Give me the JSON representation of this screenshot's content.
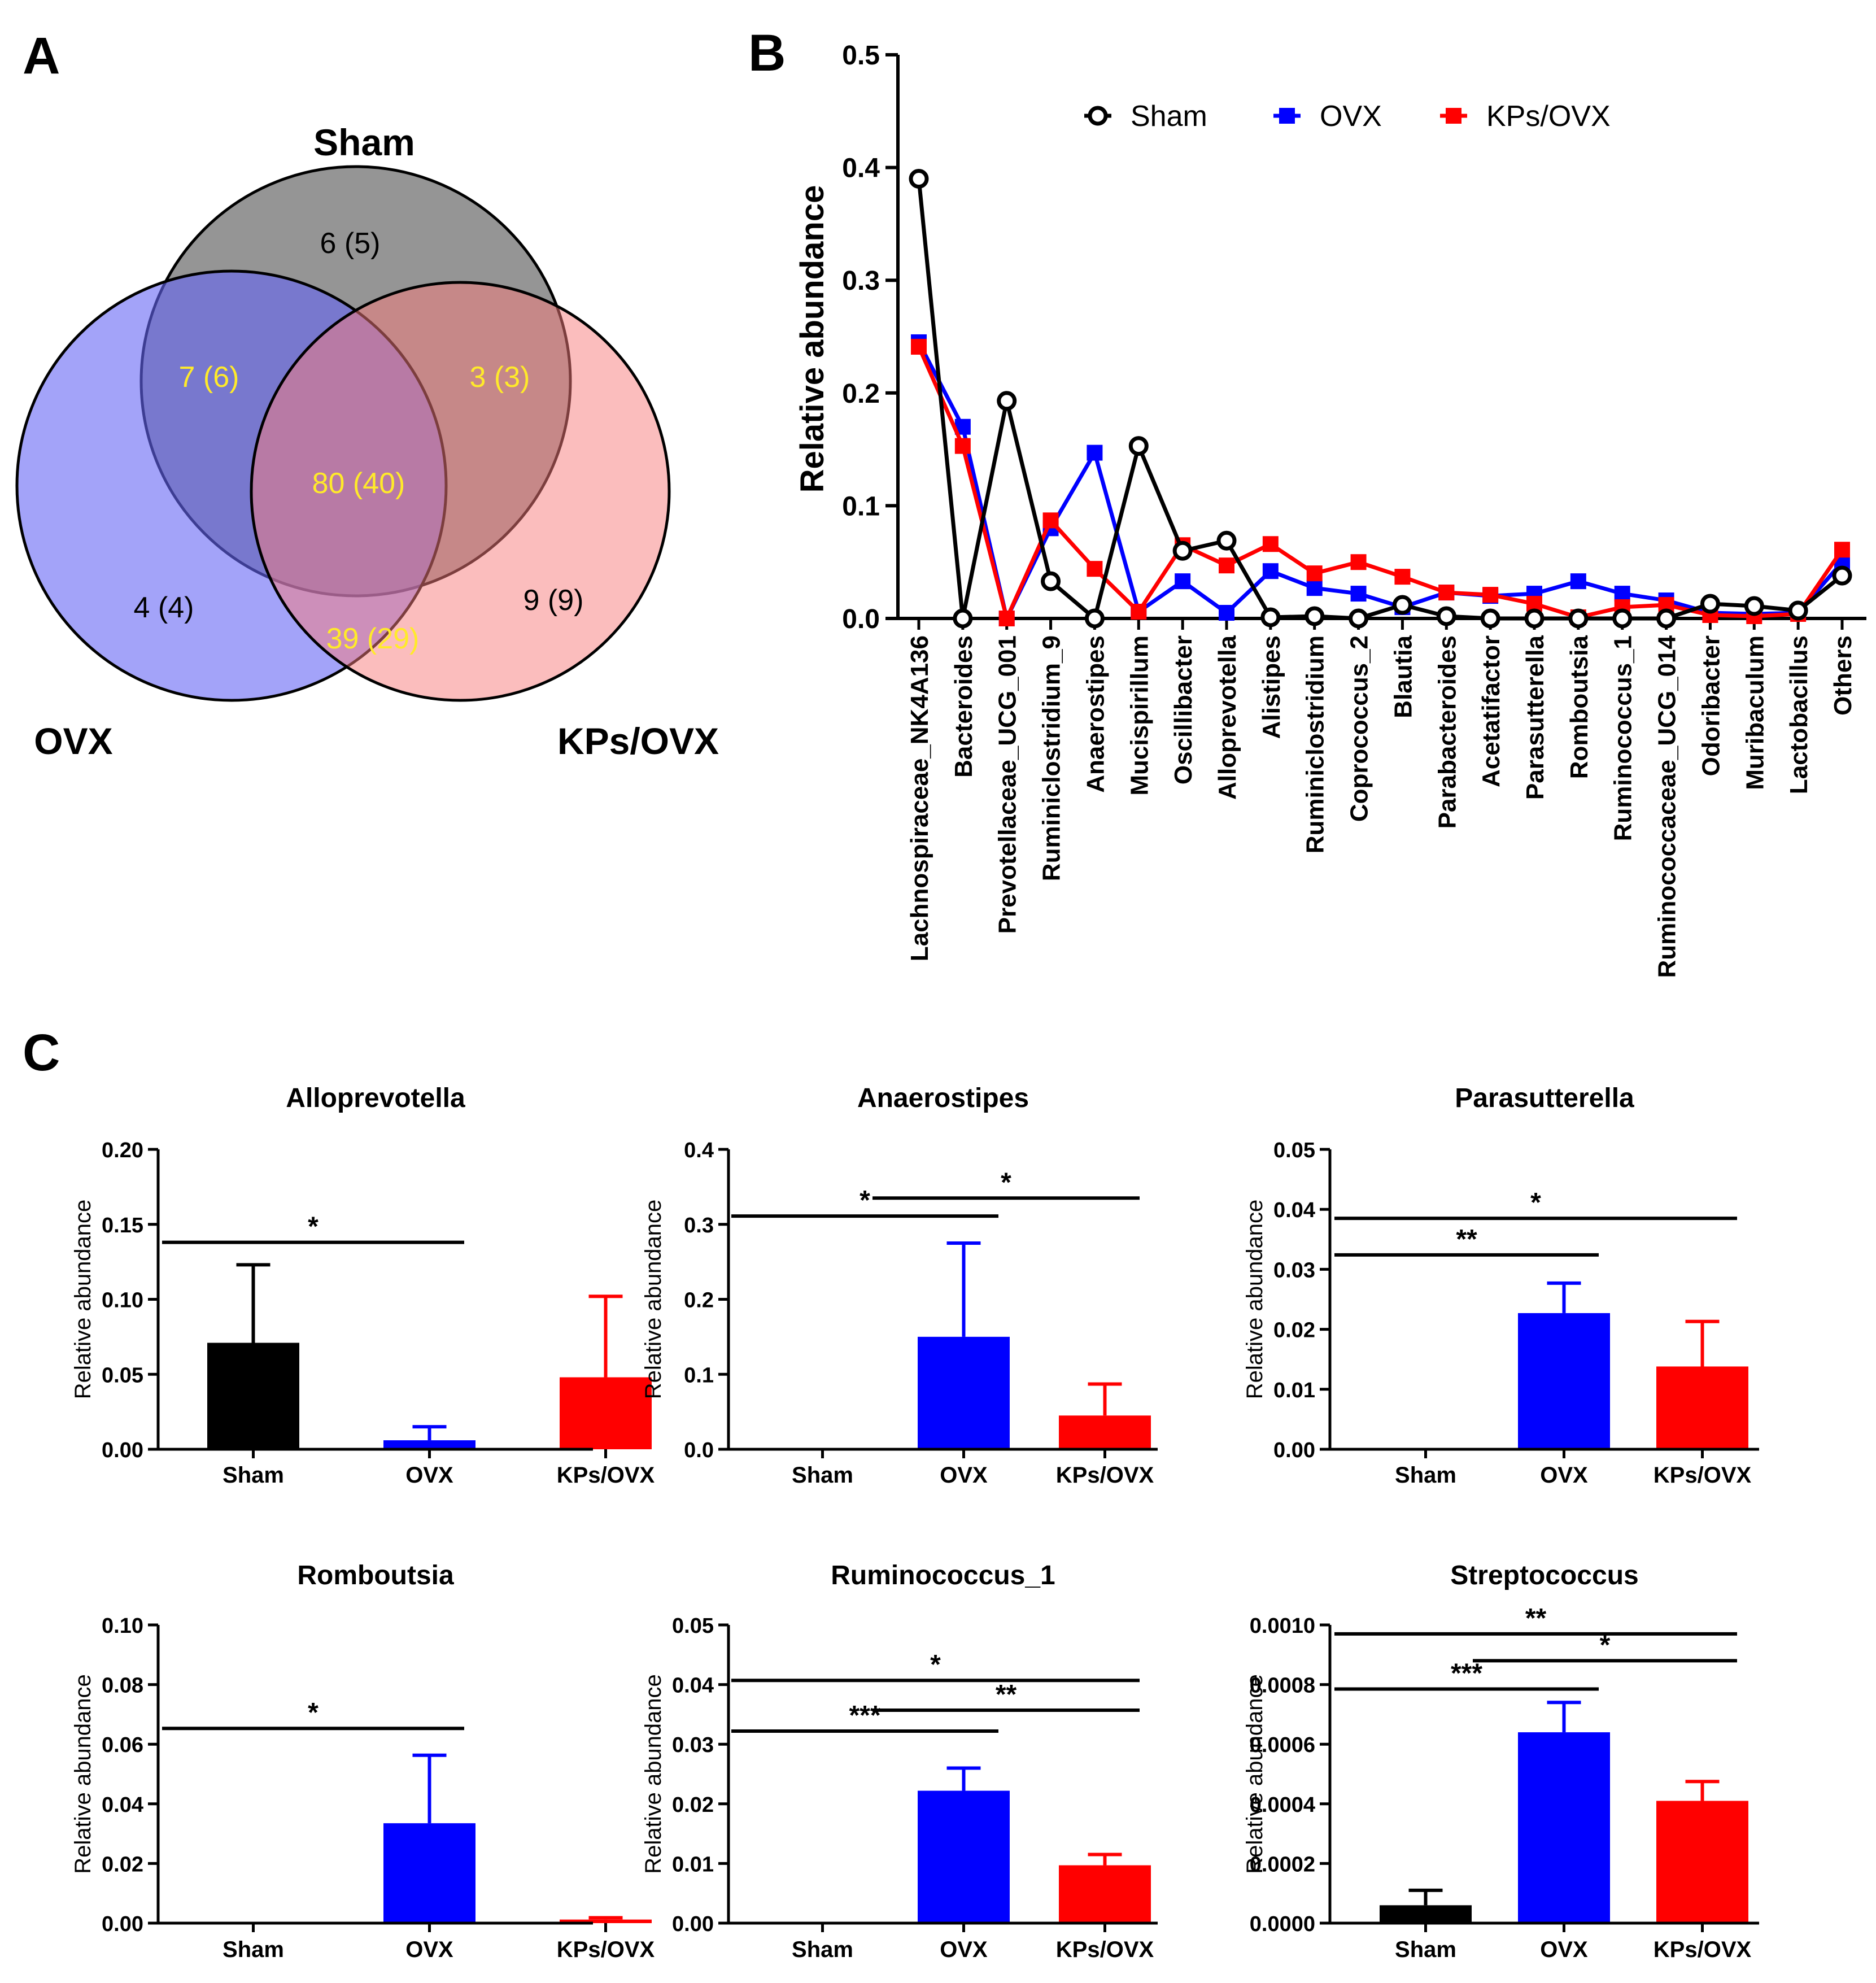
{
  "panel_labels": {
    "a": "A",
    "b": "B",
    "c": "C"
  },
  "venn": {
    "sets": [
      {
        "name": "Sham",
        "color": "#8a8a8a"
      },
      {
        "name": "OVX",
        "color": "#6565f5"
      },
      {
        "name": "KPs/OVX",
        "color": "#f77b7b"
      }
    ],
    "regions": {
      "sham_only": "6 (5)",
      "sham_ovx": "7 (6)",
      "sham_kps": "3 (3)",
      "all": "80 (40)",
      "ovx_only": "4 (4)",
      "kps_only": "9 (9)",
      "ovx_kps": "39 (29)"
    }
  },
  "chart_data": [
    {
      "type": "line",
      "panel": "B",
      "ylabel": "Relative abundance",
      "ylim": [
        0,
        0.5
      ],
      "yticks": [
        "0.0",
        "0.1",
        "0.2",
        "0.3",
        "0.4",
        "0.5"
      ],
      "categories": [
        "Lachnospiraceae_NK4A136",
        "Bacteroides",
        "Prevotellaceae_UCG_001",
        "Ruminiclostridium_9",
        "Anaerostipes",
        "Mucispirillum",
        "Oscillibacter",
        "Alloprevotella",
        "Alistipes",
        "Ruminiclostridium",
        "Coprococcus_2",
        "Blautia",
        "Parabacteroides",
        "Acetatifactor",
        "Parasutterella",
        "Romboutsia",
        "Ruminococcus_1",
        "Ruminococcaceae_UCG_014",
        "Odoribacter",
        "Muribaculum",
        "Lactobacillus",
        "Others"
      ],
      "series": [
        {
          "name": "Sham",
          "color": "#000000",
          "marker": "open-circle",
          "values": [
            0.39,
            0.0,
            0.193,
            0.033,
            0.0,
            0.153,
            0.06,
            0.069,
            0.001,
            0.002,
            0.0,
            0.012,
            0.002,
            0.0,
            0.0,
            0.0,
            0.0,
            0.0,
            0.013,
            0.011,
            0.007,
            0.038
          ]
        },
        {
          "name": "OVX",
          "color": "#0000ff",
          "marker": "square",
          "values": [
            0.245,
            0.17,
            0.0,
            0.08,
            0.147,
            0.006,
            0.033,
            0.005,
            0.042,
            0.027,
            0.022,
            0.01,
            0.023,
            0.02,
            0.022,
            0.033,
            0.022,
            0.016,
            0.005,
            0.004,
            0.005,
            0.05
          ]
        },
        {
          "name": "KPs/OVX",
          "color": "#ff0000",
          "marker": "square",
          "values": [
            0.241,
            0.153,
            0.0,
            0.087,
            0.044,
            0.006,
            0.065,
            0.047,
            0.066,
            0.04,
            0.05,
            0.037,
            0.023,
            0.021,
            0.013,
            0.001,
            0.01,
            0.012,
            0.003,
            0.002,
            0.004,
            0.061
          ]
        }
      ]
    },
    {
      "type": "bar",
      "panel": "C",
      "title": "Alloprevotella",
      "ylabel": "Relative abundance",
      "categories": [
        "Sham",
        "OVX",
        "KPs/OVX"
      ],
      "colors": [
        "#000000",
        "#0000ff",
        "#ff0000"
      ],
      "values": [
        0.071,
        0.006,
        0.048
      ],
      "errors": [
        0.052,
        0.009,
        0.054
      ],
      "ylim": [
        0,
        0.2
      ],
      "yticks": [
        "0.00",
        "0.05",
        "0.10",
        "0.15",
        "0.20"
      ],
      "significance": [
        {
          "from": 0,
          "to": 1,
          "level": 0.138,
          "label": "*"
        }
      ]
    },
    {
      "type": "bar",
      "panel": "C",
      "title": "Anaerostipes",
      "ylabel": "Relative abundance",
      "categories": [
        "Sham",
        "OVX",
        "KPs/OVX"
      ],
      "colors": [
        "#000000",
        "#0000ff",
        "#ff0000"
      ],
      "values": [
        0.0,
        0.15,
        0.045
      ],
      "errors": [
        0.0,
        0.125,
        0.042
      ],
      "ylim": [
        0,
        0.4
      ],
      "yticks": [
        "0.0",
        "0.1",
        "0.2",
        "0.3",
        "0.4"
      ],
      "significance": [
        {
          "from": 0,
          "to": 1,
          "level": 0.311,
          "label": "*"
        },
        {
          "from": 1,
          "to": 2,
          "level": 0.335,
          "label": "*"
        }
      ]
    },
    {
      "type": "bar",
      "panel": "C",
      "title": "Parasutterella",
      "ylabel": "Relative abundance",
      "categories": [
        "Sham",
        "OVX",
        "KPs/OVX"
      ],
      "colors": [
        "#000000",
        "#0000ff",
        "#ff0000"
      ],
      "values": [
        0.0,
        0.0227,
        0.0138
      ],
      "errors": [
        0.0,
        0.005,
        0.0075
      ],
      "ylim": [
        0,
        0.05
      ],
      "yticks": [
        "0.00",
        "0.01",
        "0.02",
        "0.03",
        "0.04",
        "0.05"
      ],
      "significance": [
        {
          "from": 0,
          "to": 1,
          "level": 0.0324,
          "label": "**"
        },
        {
          "from": 0,
          "to": 2,
          "level": 0.0385,
          "label": "*"
        }
      ]
    },
    {
      "type": "bar",
      "panel": "C",
      "title": "Romboutsia",
      "ylabel": "Relative abundance",
      "categories": [
        "Sham",
        "OVX",
        "KPs/OVX"
      ],
      "colors": [
        "#000000",
        "#0000ff",
        "#ff0000"
      ],
      "values": [
        0.0,
        0.0335,
        0.0012
      ],
      "errors": [
        0.0,
        0.0228,
        0.0006
      ],
      "ylim": [
        0,
        0.1
      ],
      "yticks": [
        "0.00",
        "0.02",
        "0.04",
        "0.06",
        "0.08",
        "0.10"
      ],
      "significance": [
        {
          "from": 0,
          "to": 1,
          "level": 0.0653,
          "label": "*"
        }
      ]
    },
    {
      "type": "bar",
      "panel": "C",
      "title": "Ruminococcus_1",
      "ylabel": "Relative abundance",
      "categories": [
        "Sham",
        "OVX",
        "KPs/OVX"
      ],
      "colors": [
        "#000000",
        "#0000ff",
        "#ff0000"
      ],
      "values": [
        0.0,
        0.0222,
        0.0097
      ],
      "errors": [
        0.0,
        0.0038,
        0.0018
      ],
      "ylim": [
        0,
        0.05
      ],
      "yticks": [
        "0.00",
        "0.01",
        "0.02",
        "0.03",
        "0.04",
        "0.05"
      ],
      "significance": [
        {
          "from": 0,
          "to": 1,
          "level": 0.0322,
          "label": "***"
        },
        {
          "from": 1,
          "to": 2,
          "level": 0.0357,
          "label": "**"
        },
        {
          "from": 0,
          "to": 2,
          "level": 0.0407,
          "label": "*"
        }
      ]
    },
    {
      "type": "bar",
      "panel": "C",
      "title": "Streptococcus",
      "ylabel": "Relative abundance",
      "categories": [
        "Sham",
        "OVX",
        "KPs/OVX"
      ],
      "colors": [
        "#000000",
        "#0000ff",
        "#ff0000"
      ],
      "values": [
        6e-05,
        0.00064,
        0.00041
      ],
      "errors": [
        5e-05,
        0.0001,
        6.5e-05
      ],
      "ylim": [
        0,
        0.001
      ],
      "yticks": [
        "0.0000",
        "0.0002",
        "0.0004",
        "0.0006",
        "0.0008",
        "0.0010"
      ],
      "significance": [
        {
          "from": 0,
          "to": 1,
          "level": 0.000785,
          "label": "***"
        },
        {
          "from": 1,
          "to": 2,
          "level": 0.00088,
          "label": "*"
        },
        {
          "from": 0,
          "to": 2,
          "level": 0.00097,
          "label": "**"
        }
      ]
    }
  ]
}
